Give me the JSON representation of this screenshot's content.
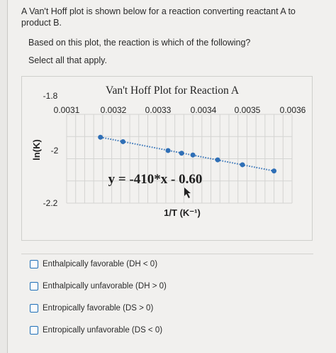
{
  "question": {
    "line1": "A Van't Hoff plot is shown below for a reaction converting reactant A to",
    "line2": "product B.",
    "line3": "Based on this plot, the reaction is which of the following?",
    "line4": "Select all that apply."
  },
  "chart_data": {
    "type": "scatter",
    "title": "Van't Hoff Plot for Reaction A",
    "xlabel": "1/T (K⁻¹)",
    "ylabel": "ln(K)",
    "x_ticks": [
      "0.0031",
      "0.0032",
      "0.0033",
      "0.0034",
      "0.0035",
      "0.0036"
    ],
    "y_ticks": [
      "-1.8",
      "-2",
      "-2.2"
    ],
    "xlim": [
      0.0031,
      0.0036
    ],
    "ylim": [
      -2.2,
      -1.8
    ],
    "equation": "y = -410*x - 0.60",
    "grid": true,
    "series": [
      {
        "color": "#2f6fb6",
        "points": [
          {
            "x": 0.003175,
            "y": -1.903
          },
          {
            "x": 0.003225,
            "y": -1.923
          },
          {
            "x": 0.003325,
            "y": -1.963
          },
          {
            "x": 0.003355,
            "y": -1.975
          },
          {
            "x": 0.00338,
            "y": -1.983
          },
          {
            "x": 0.003435,
            "y": -2.005
          },
          {
            "x": 0.00349,
            "y": -2.027
          },
          {
            "x": 0.00356,
            "y": -2.055
          }
        ]
      }
    ]
  },
  "options": [
    {
      "label": "Enthalpically favorable (DH < 0)"
    },
    {
      "label": "Enthalpically unfavorable (DH > 0)"
    },
    {
      "label": "Entropically favorable (DS > 0)"
    },
    {
      "label": "Entropically unfavorable (DS < 0)"
    }
  ]
}
